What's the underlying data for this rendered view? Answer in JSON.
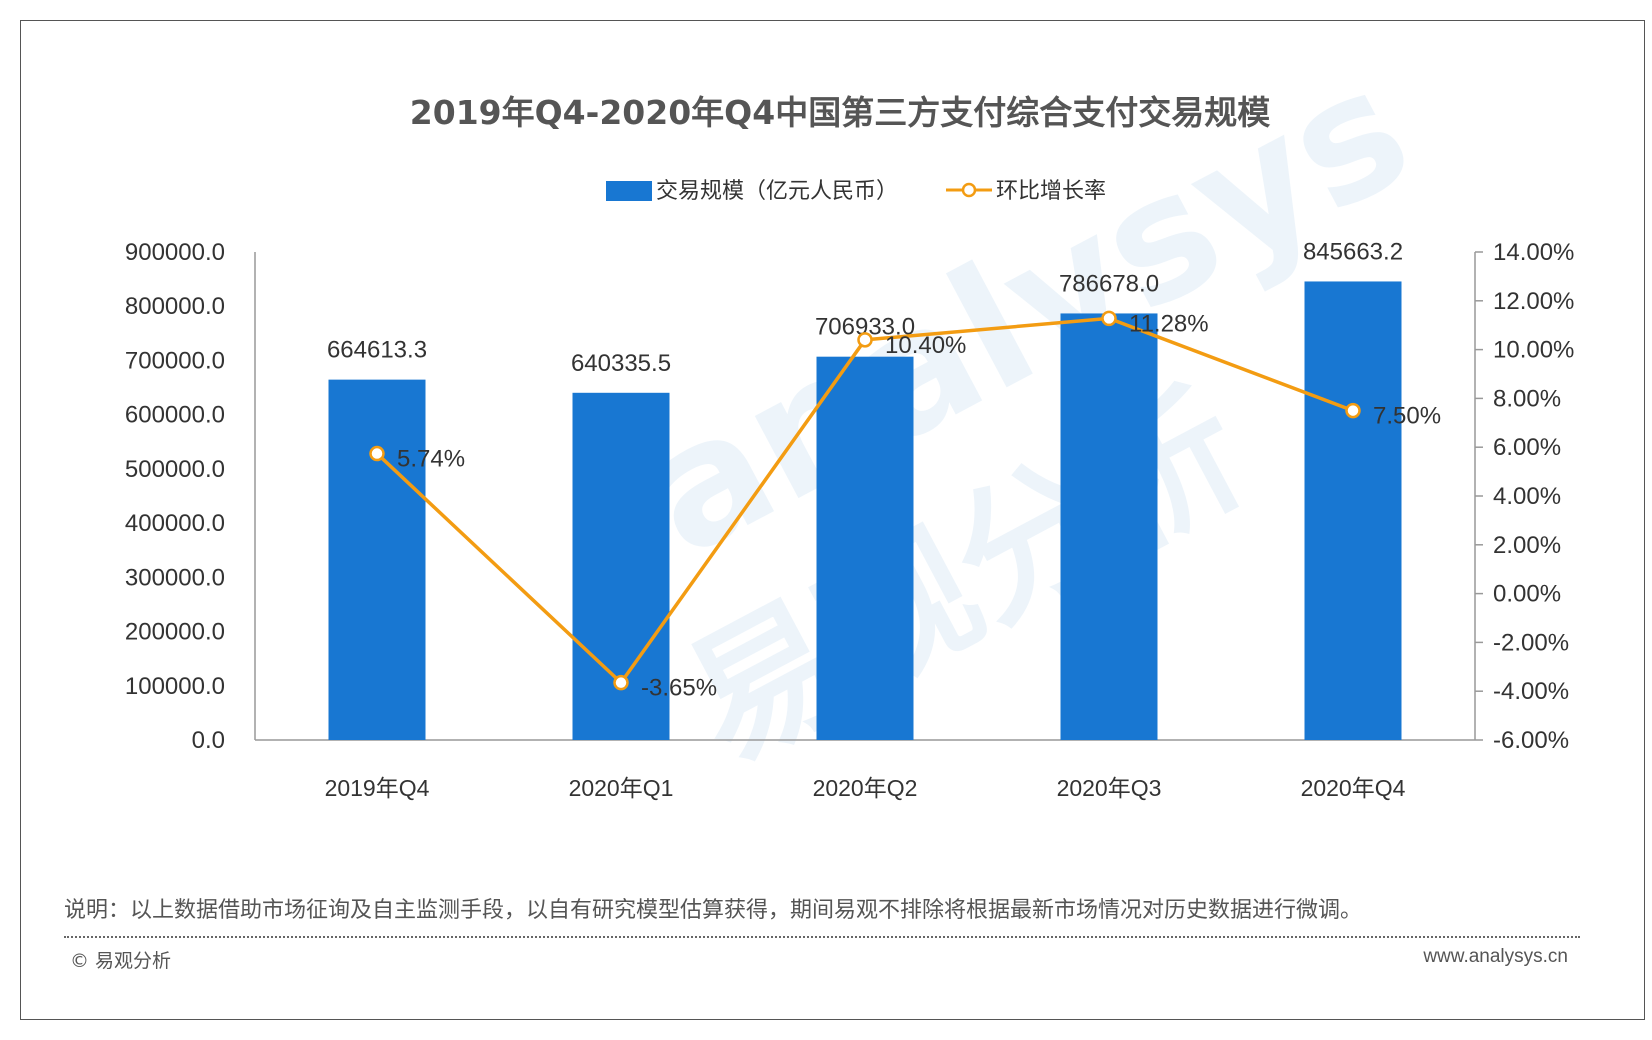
{
  "chart_data": {
    "type": "bar",
    "title": "2019年Q4-2020年Q4中国第三方支付综合支付交易规模",
    "categories": [
      "2019年Q4",
      "2020年Q1",
      "2020年Q2",
      "2020年Q3",
      "2020年Q4"
    ],
    "series": [
      {
        "name": "交易规模（亿元人民币）",
        "type": "bar",
        "axis": "left",
        "color": "#1877d2",
        "values": [
          664613.3,
          640335.5,
          706933.0,
          786678.0,
          845663.2
        ],
        "labels": [
          "664613.3",
          "640335.5",
          "706933.0",
          "786678.0",
          "845663.2"
        ]
      },
      {
        "name": "环比增长率",
        "type": "line",
        "axis": "right",
        "color": "#f39c12",
        "values": [
          5.74,
          -3.65,
          10.4,
          11.28,
          7.5
        ],
        "labels": [
          "5.74%",
          "-3.65%",
          "10.40%",
          "11.28%",
          "7.50%"
        ]
      }
    ],
    "y_left": {
      "ylim": [
        0,
        900000
      ],
      "ticks": [
        "900000.0",
        "800000.0",
        "700000.0",
        "600000.0",
        "500000.0",
        "400000.0",
        "300000.0",
        "200000.0",
        "100000.0",
        "0.0"
      ]
    },
    "y_right": {
      "ylim": [
        -6,
        14
      ],
      "ticks": [
        "14.00%",
        "12.00%",
        "10.00%",
        "8.00%",
        "6.00%",
        "4.00%",
        "2.00%",
        "0.00%",
        "-2.00%",
        "-4.00%",
        "-6.00%"
      ]
    },
    "grid": false,
    "legend_position": "top"
  },
  "note": "说明：以上数据借助市场征询及自主监测手段，以自有研究模型估算获得，期间易观不排除将根据最新市场情况对历史数据进行微调。",
  "copyright": "© 易观分析",
  "website": "www.analysys.cn",
  "watermark": {
    "latin": "analysys",
    "chinese": "易观分析"
  }
}
